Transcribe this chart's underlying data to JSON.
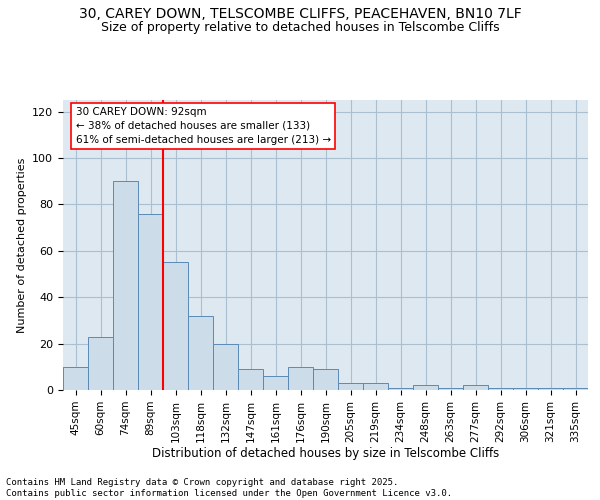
{
  "title_line1": "30, CAREY DOWN, TELSCOMBE CLIFFS, PEACEHAVEN, BN10 7LF",
  "title_line2": "Size of property relative to detached houses in Telscombe Cliffs",
  "xlabel": "Distribution of detached houses by size in Telscombe Cliffs",
  "ylabel": "Number of detached properties",
  "categories": [
    "45sqm",
    "60sqm",
    "74sqm",
    "89sqm",
    "103sqm",
    "118sqm",
    "132sqm",
    "147sqm",
    "161sqm",
    "176sqm",
    "190sqm",
    "205sqm",
    "219sqm",
    "234sqm",
    "248sqm",
    "263sqm",
    "277sqm",
    "292sqm",
    "306sqm",
    "321sqm",
    "335sqm"
  ],
  "bar_values": [
    10,
    23,
    90,
    76,
    55,
    32,
    20,
    9,
    6,
    10,
    9,
    3,
    3,
    1,
    2,
    1,
    2,
    1,
    1,
    1,
    1
  ],
  "bar_color": "#ccdce8",
  "bar_edge_color": "#5a8ab5",
  "vline_x": 3.5,
  "vline_color": "red",
  "annotation_text": "30 CAREY DOWN: 92sqm\n← 38% of detached houses are smaller (133)\n61% of semi-detached houses are larger (213) →",
  "annotation_box_color": "white",
  "annotation_box_edge": "red",
  "ylim": [
    0,
    125
  ],
  "yticks": [
    0,
    20,
    40,
    60,
    80,
    100,
    120
  ],
  "grid_color": "#aabfd0",
  "background_color": "#dde8f0",
  "footnote": "Contains HM Land Registry data © Crown copyright and database right 2025.\nContains public sector information licensed under the Open Government Licence v3.0.",
  "title_fontsize": 10,
  "subtitle_fontsize": 9,
  "xlabel_fontsize": 8.5,
  "ylabel_fontsize": 8,
  "footnote_fontsize": 6.5,
  "annotation_fontsize": 7.5
}
